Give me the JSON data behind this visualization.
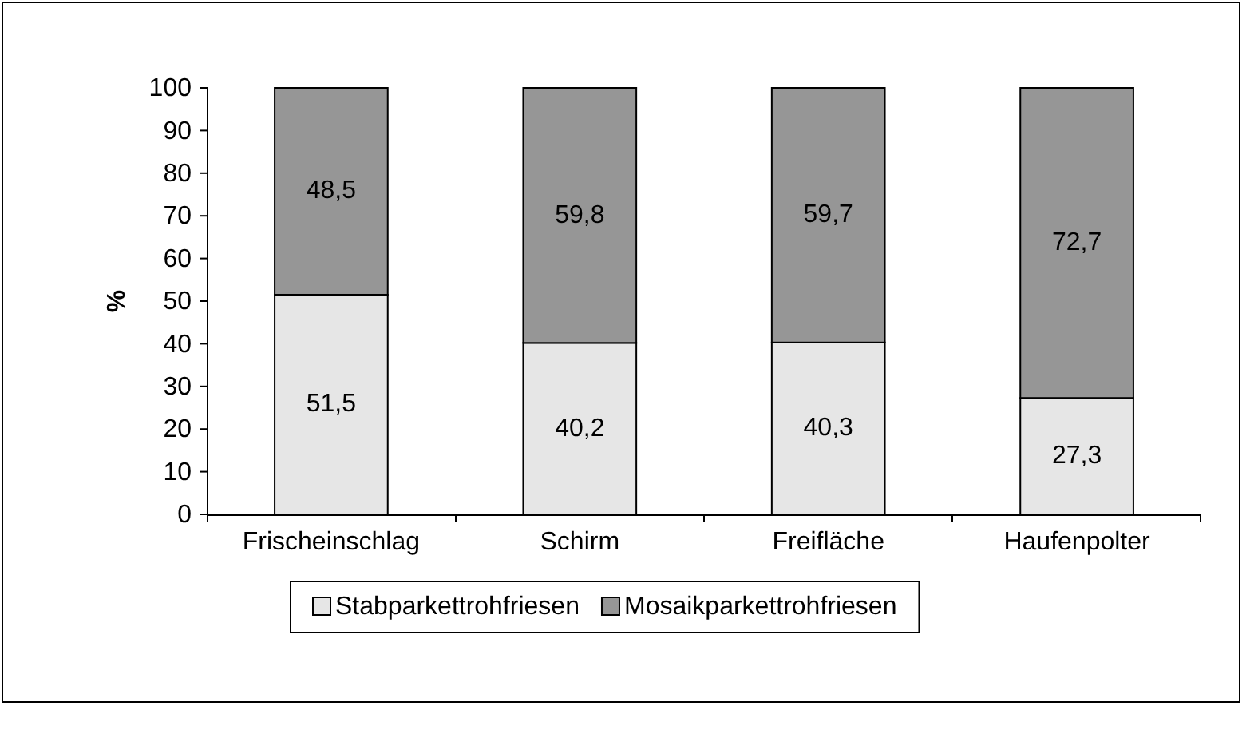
{
  "chart_data": {
    "type": "bar",
    "stacked": true,
    "categories": [
      "Frischeinschlag",
      "Schirm",
      "Freifläche",
      "Haufenpolter"
    ],
    "ylabel": "%",
    "ylim": [
      0,
      100
    ],
    "yticks": [
      0,
      10,
      20,
      30,
      40,
      50,
      60,
      70,
      80,
      90,
      100
    ],
    "grid": false,
    "legend": "bottom",
    "series": [
      {
        "name": "Stabparkettrohfriesen",
        "color": "#e6e6e6",
        "values": [
          51.5,
          40.2,
          40.3,
          27.3
        ],
        "value_labels": [
          "51,5",
          "40,2",
          "40,3",
          "27,3"
        ]
      },
      {
        "name": "Mosaikparkettrohfriesen",
        "color": "#969696",
        "values": [
          48.5,
          59.8,
          59.7,
          72.7
        ],
        "value_labels": [
          "48,5",
          "59,8",
          "59,7",
          "72,7"
        ]
      }
    ]
  }
}
